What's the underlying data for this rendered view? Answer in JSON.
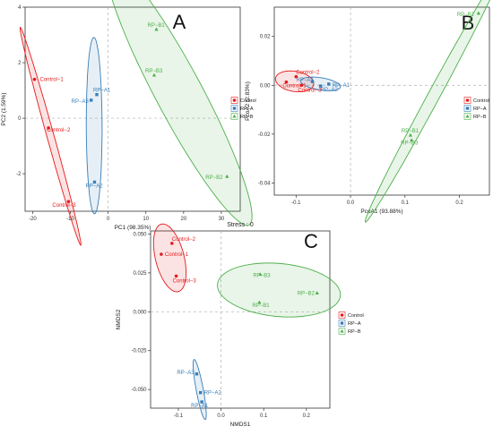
{
  "figure": {
    "background": "#ffffff"
  },
  "groups": [
    {
      "name": "Control",
      "color": "#e41a1c",
      "marker": "circle"
    },
    {
      "name": "RP−A",
      "color": "#377eb8",
      "marker": "square"
    },
    {
      "name": "RP−B",
      "color": "#4daf4a",
      "marker": "triangle"
    }
  ],
  "chart_data": [
    {
      "panel_letter": "A",
      "type": "scatter",
      "xlabel": "PC1 (98.35%)",
      "ylabel": "PC2 (1.59%)",
      "xlim": [
        -22,
        35
      ],
      "ylim": [
        -3.35,
        4.0
      ],
      "xticks": [
        -20,
        -10,
        0,
        10,
        20,
        30
      ],
      "yticks": [
        -2,
        0,
        2,
        4
      ],
      "zero_lines": true,
      "legend": "right",
      "points": [
        {
          "label": "Control−1",
          "group": "Control",
          "x": -19.5,
          "y": 1.4
        },
        {
          "label": "Control−2",
          "group": "Control",
          "x": -15.8,
          "y": -0.35
        },
        {
          "label": "Control−3",
          "group": "Control",
          "x": -10.5,
          "y": -3.0
        },
        {
          "label": "RP−A1",
          "group": "RP−A",
          "x": -3.0,
          "y": 0.85
        },
        {
          "label": "RP−A2",
          "group": "RP−A",
          "x": -3.6,
          "y": -2.3
        },
        {
          "label": "RP−A3",
          "group": "RP−A",
          "x": -4.5,
          "y": 0.65
        },
        {
          "label": "RP−B1",
          "group": "RP−B",
          "x": 12.8,
          "y": 3.2
        },
        {
          "label": "RP−B2",
          "group": "RP−B",
          "x": 31.5,
          "y": -2.1
        },
        {
          "label": "RP−B3",
          "group": "RP−B",
          "x": 12.2,
          "y": 1.55
        }
      ]
    },
    {
      "panel_letter": "B",
      "type": "scatter",
      "xlabel": "PcoA1 (93.88%)",
      "ylabel": "PcoA2 (2.83%)",
      "xlim": [
        -0.14,
        0.255
      ],
      "ylim": [
        -0.045,
        0.032
      ],
      "xticks": [
        -0.1,
        0.0,
        0.1,
        0.2
      ],
      "yticks": [
        -0.04,
        -0.02,
        0.0,
        0.02
      ],
      "xtick_labels": [
        "-0.1",
        "0.0",
        "0.1",
        "0.2"
      ],
      "ytick_labels": [
        "-0.04",
        "-0.02",
        "0.00",
        "0.02"
      ],
      "zero_lines": true,
      "legend": "right",
      "points": [
        {
          "label": "Control−1",
          "group": "Control",
          "x": -0.118,
          "y": 0.0013
        },
        {
          "label": "Control−2",
          "group": "Control",
          "x": -0.1,
          "y": 0.0035
        },
        {
          "label": "Control−3",
          "group": "Control",
          "x": -0.09,
          "y": 0.0
        },
        {
          "label": "RP−A1",
          "group": "RP−A",
          "x": -0.04,
          "y": 0.0005
        },
        {
          "label": "RP−A2",
          "group": "RP−A",
          "x": -0.055,
          "y": -0.0003
        },
        {
          "label": "RP−A3",
          "group": "RP−A",
          "x": -0.07,
          "y": 0.0015
        },
        {
          "label": "RP−B1",
          "group": "RP−B",
          "x": 0.11,
          "y": -0.0205
        },
        {
          "label": "RP−B2",
          "group": "RP−B",
          "x": 0.235,
          "y": 0.0295
        },
        {
          "label": "RP−B3",
          "group": "RP−B",
          "x": 0.112,
          "y": -0.0225
        }
      ]
    },
    {
      "panel_letter": "C",
      "type": "scatter",
      "title": "Stress : 0",
      "xlabel": "NMDS1",
      "ylabel": "NMDS2",
      "xlim": [
        -0.165,
        0.255
      ],
      "ylim": [
        -0.062,
        0.052
      ],
      "xticks": [
        -0.1,
        0.0,
        0.1,
        0.2
      ],
      "yticks": [
        -0.05,
        -0.025,
        0.0,
        0.025,
        0.05
      ],
      "xtick_labels": [
        "-0.1",
        "0.0",
        "0.1",
        "0.2"
      ],
      "ytick_labels": [
        "-0.050",
        "-0.025",
        "0.000",
        "0.025",
        "0.050"
      ],
      "zero_lines": true,
      "legend": "right",
      "points": [
        {
          "label": "Control−1",
          "group": "Control",
          "x": -0.14,
          "y": 0.037
        },
        {
          "label": "Control−2",
          "group": "Control",
          "x": -0.115,
          "y": 0.044
        },
        {
          "label": "Control−3",
          "group": "Control",
          "x": -0.105,
          "y": 0.023
        },
        {
          "label": "RP−A1",
          "group": "RP−A",
          "x": -0.045,
          "y": -0.058
        },
        {
          "label": "RP−A2",
          "group": "RP−A",
          "x": -0.048,
          "y": -0.052
        },
        {
          "label": "RP−A3",
          "group": "RP−A",
          "x": -0.057,
          "y": -0.04
        },
        {
          "label": "RP−B1",
          "group": "RP−B",
          "x": 0.09,
          "y": 0.006
        },
        {
          "label": "RP−B2",
          "group": "RP−B",
          "x": 0.225,
          "y": 0.012
        },
        {
          "label": "RP−B3",
          "group": "RP−B",
          "x": 0.092,
          "y": 0.024
        }
      ]
    }
  ]
}
